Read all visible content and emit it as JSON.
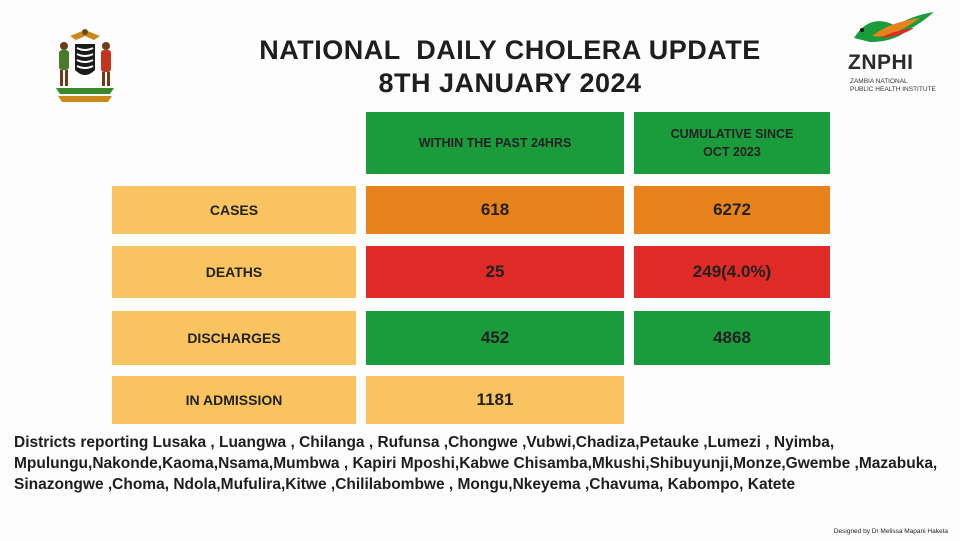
{
  "header": {
    "title_line1": "NATIONAL  DAILY CHOLERA UPDATE",
    "title_line2": "8TH JANUARY 2024"
  },
  "logo": {
    "brand": "ZNPHI",
    "sub_line1": "ZAMBIA NATIONAL",
    "sub_line2": "PUBLIC HEALTH INSTITUTE"
  },
  "table": {
    "col_headers": [
      "WITHIN THE PAST 24HRS",
      "CUMULATIVE SINCE OCT 2023"
    ],
    "rows": [
      {
        "label": "CASES",
        "past24": "618",
        "cumulative": "6272"
      },
      {
        "label": "DEATHS",
        "past24": "25",
        "cumulative": "249(4.0%)"
      },
      {
        "label": "DISCHARGES",
        "past24": "452",
        "cumulative": "4868"
      },
      {
        "label": "IN ADMISSION",
        "past24": "1181",
        "cumulative": ""
      }
    ]
  },
  "districts": {
    "text": "Districts reporting Lusaka , Luangwa , Chilanga , Rufunsa ,Chongwe ,Vubwi,Chadiza,Petauke ,Lumezi , Nyimba, Mpulungu,Nakonde,Kaoma,Nsama,Mumbwa , Kapiri Mposhi,Kabwe Chisamba,Mkushi,Shibuyunji,Monze,Gwembe ,Mazabuka, Sinazongwe ,Choma, Ndola,Mufulira,Kitwe ,Chililabombwe , Mongu,Nkeyema ,Chavuma, Kabompo, Katete"
  },
  "footer": {
    "designer": "Designed by Dr Melissa Mapani Haketa"
  },
  "colors": {
    "green": "#1a9c3c",
    "orange": "#e8821c",
    "red": "#df2a25",
    "yellow": "#f9c460"
  },
  "icons": {
    "coat_of_arms": "zambia-coat-of-arms",
    "logo_bird": "znphi-bird-logo"
  }
}
